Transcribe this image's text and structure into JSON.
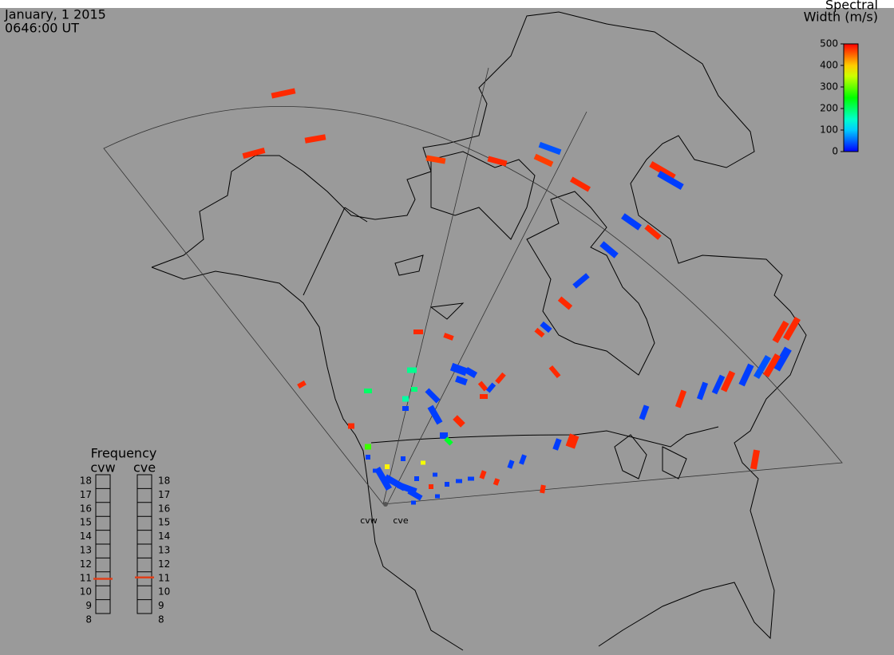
{
  "header": {
    "date": "January, 1 2015",
    "time": "0646:00 UT"
  },
  "colorbar": {
    "title": [
      "Spectral",
      "Width (m/s)"
    ],
    "lim": [
      0,
      500
    ],
    "ticks": [
      0,
      100,
      200,
      300,
      400,
      500
    ]
  },
  "frequency": {
    "title": "Frequency",
    "lim": [
      8,
      18
    ],
    "ticks": [
      8,
      9,
      10,
      11,
      12,
      13,
      14,
      15,
      16,
      17,
      18
    ],
    "radars": [
      {
        "name": "cvw",
        "value": 10.5
      },
      {
        "name": "cve",
        "value": 10.6
      }
    ]
  },
  "stations": [
    "cvw",
    "cve"
  ],
  "cells": [
    480,
    480,
    480,
    470,
    480,
    40,
    470,
    480,
    480,
    30,
    30,
    480,
    30,
    30,
    480,
    30,
    480,
    480,
    480,
    30,
    480,
    40,
    30,
    480,
    30,
    30,
    480,
    30,
    480,
    30,
    30,
    30,
    480,
    480,
    480,
    480,
    480,
    480,
    30,
    480,
    480,
    30,
    30,
    30,
    480,
    480,
    480,
    200,
    180,
    190,
    170,
    30,
    30,
    30,
    30,
    480,
    230,
    480,
    280,
    30,
    30,
    30,
    30,
    30,
    30,
    30,
    480,
    30,
    30,
    30,
    30,
    370,
    380,
    30,
    30,
    30
  ]
}
